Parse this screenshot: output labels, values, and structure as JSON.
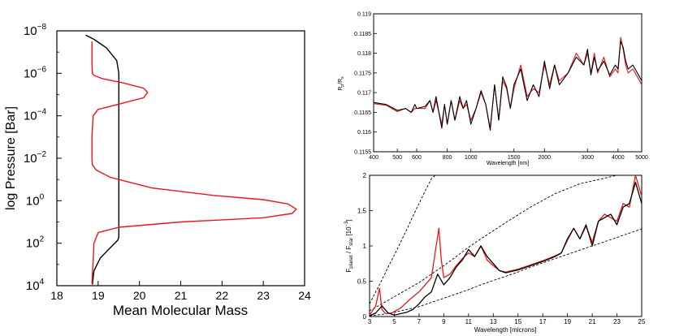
{
  "chart_data": [
    {
      "type": "line",
      "panel": "left",
      "xlabel": "Mean Molecular Mass",
      "ylabel": "log Pressure [Bar]",
      "xlim": [
        18,
        24
      ],
      "ylim_log10": [
        -8,
        4
      ],
      "y_inverted": true,
      "xticks": [
        "18",
        "19",
        "20",
        "21",
        "22",
        "23",
        "24"
      ],
      "yticks": [
        {
          "base": "10",
          "exp": "−8"
        },
        {
          "base": "10",
          "exp": "−6"
        },
        {
          "base": "10",
          "exp": "−4"
        },
        {
          "base": "10",
          "exp": "−2"
        },
        {
          "base": "10",
          "exp": "0"
        },
        {
          "base": "10",
          "exp": "2"
        },
        {
          "base": "10",
          "exp": "4"
        }
      ],
      "series": [
        {
          "name": "black",
          "color": "#000000",
          "x": [
            18.7,
            18.9,
            19.2,
            19.45,
            19.5,
            19.5,
            19.5,
            19.5,
            19.5,
            19.5,
            19.5,
            19.48,
            19.3,
            19.05,
            18.9,
            18.86
          ],
          "logp": [
            -7.8,
            -7.6,
            -7.2,
            -6.6,
            -6.0,
            -4.0,
            -2.0,
            0.0,
            1.0,
            1.5,
            1.7,
            1.85,
            2.2,
            2.7,
            3.3,
            3.95
          ]
        },
        {
          "name": "red",
          "color": "#e8151b",
          "x": [
            18.85,
            18.85,
            18.86,
            18.9,
            19.1,
            19.6,
            20.1,
            20.2,
            20.1,
            19.5,
            19.0,
            18.88,
            18.85,
            18.85,
            18.86,
            18.95,
            19.3,
            20.3,
            21.8,
            23.0,
            23.6,
            23.8,
            23.7,
            23.0,
            21.0,
            19.5,
            19.0,
            18.9,
            18.88,
            18.86,
            18.85
          ],
          "logp": [
            -7.5,
            -6.5,
            -6.0,
            -5.9,
            -5.75,
            -5.55,
            -5.3,
            -5.1,
            -4.85,
            -4.55,
            -4.3,
            -4.0,
            -3.0,
            -2.0,
            -1.7,
            -1.45,
            -1.1,
            -0.6,
            -0.25,
            -0.05,
            0.15,
            0.4,
            0.6,
            0.8,
            1.0,
            1.25,
            1.5,
            2.0,
            2.8,
            3.5,
            3.9
          ]
        }
      ]
    },
    {
      "type": "line",
      "panel": "top-right",
      "xlabel": "Wavelength [nm]",
      "ylabel_main": "R",
      "ylabel_sub1": "p",
      "ylabel_mid": "/R",
      "ylabel_sub2": "s",
      "xscale": "log",
      "xlim": [
        400,
        5000
      ],
      "ylim": [
        0.1155,
        0.119
      ],
      "xticks": [
        "400",
        "500",
        "600",
        "800",
        "1000",
        "1500",
        "2000",
        "3000",
        "4000",
        "5000"
      ],
      "yticks": [
        "0.1155",
        "0.116",
        "0.1165",
        "0.117",
        "0.1175",
        "0.118",
        "0.1185",
        "0.119"
      ],
      "series": [
        {
          "name": "black",
          "color": "#000000",
          "x": [
            400,
            450,
            500,
            540,
            570,
            590,
            600,
            620,
            650,
            680,
            700,
            720,
            760,
            780,
            800,
            830,
            860,
            900,
            930,
            960,
            1000,
            1050,
            1100,
            1150,
            1200,
            1250,
            1300,
            1350,
            1400,
            1450,
            1500,
            1600,
            1700,
            1800,
            1900,
            2000,
            2100,
            2200,
            2300,
            2500,
            2700,
            2900,
            3000,
            3100,
            3200,
            3300,
            3500,
            3700,
            3900,
            4000,
            4100,
            4200,
            4300,
            4400,
            4600,
            4800,
            5000
          ],
          "y": [
            0.11675,
            0.1167,
            0.11655,
            0.1166,
            0.1165,
            0.1167,
            0.1166,
            0.11662,
            0.11665,
            0.1168,
            0.1165,
            0.1169,
            0.1161,
            0.1167,
            0.1162,
            0.1168,
            0.1163,
            0.1169,
            0.1166,
            0.1168,
            0.1162,
            0.1166,
            0.11705,
            0.1167,
            0.11605,
            0.1172,
            0.1163,
            0.1174,
            0.11715,
            0.1166,
            0.1172,
            0.1176,
            0.1168,
            0.1172,
            0.1169,
            0.1178,
            0.1171,
            0.1177,
            0.1172,
            0.1175,
            0.1179,
            0.1177,
            0.1181,
            0.11745,
            0.1179,
            0.11755,
            0.1178,
            0.11745,
            0.1177,
            0.1176,
            0.1183,
            0.11815,
            0.1178,
            0.1176,
            0.1177,
            0.1175,
            0.1173
          ]
        },
        {
          "name": "red",
          "color": "#e8151b",
          "x": [
            400,
            450,
            500,
            540,
            570,
            590,
            600,
            620,
            650,
            680,
            700,
            720,
            760,
            780,
            800,
            830,
            860,
            900,
            930,
            960,
            1000,
            1050,
            1100,
            1150,
            1200,
            1250,
            1300,
            1350,
            1400,
            1450,
            1500,
            1600,
            1700,
            1800,
            1900,
            2000,
            2100,
            2200,
            2300,
            2500,
            2700,
            2900,
            3000,
            3100,
            3200,
            3300,
            3500,
            3700,
            3900,
            4000,
            4100,
            4200,
            4300,
            4400,
            4600,
            4800,
            5000
          ],
          "y": [
            0.11672,
            0.11668,
            0.11652,
            0.1166,
            0.1165,
            0.1166,
            0.1166,
            0.1166,
            0.1166,
            0.1168,
            0.1165,
            0.1168,
            0.1162,
            0.1167,
            0.1162,
            0.1168,
            0.1163,
            0.1168,
            0.1166,
            0.1167,
            0.1163,
            0.1166,
            0.117,
            0.1167,
            0.1161,
            0.1172,
            0.1163,
            0.1173,
            0.1171,
            0.1166,
            0.1171,
            0.1177,
            0.1169,
            0.1171,
            0.117,
            0.1177,
            0.1172,
            0.1177,
            0.1173,
            0.1175,
            0.118,
            0.1177,
            0.118,
            0.1175,
            0.118,
            0.1175,
            0.1179,
            0.1174,
            0.1176,
            0.1175,
            0.1184,
            0.1181,
            0.1177,
            0.1175,
            0.1176,
            0.1174,
            0.1172
          ]
        }
      ]
    },
    {
      "type": "line",
      "panel": "bottom-right",
      "xlabel": "Wavelength [microns]",
      "ylabel_main": "F",
      "ylabel_sub1": "planet",
      "ylabel_mid": " / F",
      "ylabel_sub2": "star",
      "ylabel_tail": " [10",
      "ylabel_sup": "−3",
      "ylabel_end": "]",
      "xlim": [
        3,
        25
      ],
      "ylim": [
        0,
        2
      ],
      "xticks": [
        "3",
        "5",
        "7",
        "9",
        "11",
        "13",
        "15",
        "17",
        "19",
        "21",
        "23",
        "25"
      ],
      "yticks": [
        "0",
        "0.5",
        "1",
        "1.5",
        "2"
      ],
      "series": [
        {
          "name": "black",
          "color": "#000000",
          "x": [
            3,
            3.5,
            4,
            4.5,
            5,
            5.5,
            6,
            6.5,
            7,
            7.5,
            8,
            8.5,
            9,
            9.5,
            10,
            10.5,
            11,
            11.5,
            12,
            12.5,
            13,
            13.5,
            14,
            15,
            16,
            17,
            18,
            18.5,
            19,
            19.5,
            20,
            20.5,
            21,
            21.5,
            22,
            22.5,
            23,
            23.5,
            24,
            24.5,
            25
          ],
          "y": [
            0.01,
            0.05,
            0.15,
            0.05,
            0.02,
            0.04,
            0.06,
            0.1,
            0.18,
            0.28,
            0.35,
            0.6,
            0.45,
            0.55,
            0.7,
            0.8,
            0.95,
            0.85,
            1.0,
            0.85,
            0.75,
            0.65,
            0.62,
            0.66,
            0.72,
            0.78,
            0.85,
            0.9,
            1.1,
            1.25,
            1.1,
            1.3,
            1.0,
            1.35,
            1.4,
            1.45,
            1.3,
            1.55,
            1.6,
            1.9,
            1.6
          ]
        },
        {
          "name": "red",
          "color": "#e8151b",
          "x": [
            3,
            3.5,
            3.8,
            4,
            4.3,
            4.8,
            5.5,
            6.3,
            7,
            7.5,
            8,
            8.3,
            8.6,
            8.8,
            9,
            9.5,
            10,
            10.5,
            11,
            11.5,
            12,
            12.5,
            13,
            13.5,
            14,
            15,
            16,
            17,
            18,
            18.5,
            19,
            19.5,
            20,
            20.5,
            21,
            21.5,
            22,
            22.5,
            23,
            23.5,
            24,
            24.5,
            25
          ],
          "y": [
            0.02,
            0.15,
            0.4,
            0.1,
            0.04,
            0.05,
            0.12,
            0.25,
            0.35,
            0.45,
            0.55,
            0.9,
            1.25,
            0.8,
            0.55,
            0.6,
            0.72,
            0.82,
            0.9,
            0.85,
            1.0,
            0.8,
            0.72,
            0.65,
            0.63,
            0.67,
            0.73,
            0.79,
            0.86,
            0.9,
            1.08,
            1.25,
            1.1,
            1.28,
            1.05,
            1.35,
            1.45,
            1.4,
            1.35,
            1.6,
            1.55,
            2.0,
            1.7
          ]
        },
        {
          "name": "dashed-1",
          "color": "#000000",
          "dashed": true,
          "x": [
            3,
            3.5,
            4,
            4.5,
            5,
            5.5,
            6,
            6.5,
            7,
            7.5,
            8,
            8.3
          ],
          "y": [
            0.18,
            0.35,
            0.52,
            0.7,
            0.87,
            1.05,
            1.23,
            1.42,
            1.6,
            1.78,
            1.95,
            2.0
          ]
        },
        {
          "name": "dashed-2",
          "color": "#000000",
          "dashed": true,
          "x": [
            3,
            4,
            5,
            6,
            7,
            8,
            9,
            10,
            11,
            12,
            14,
            16,
            18,
            20,
            22,
            23,
            24
          ],
          "y": [
            0.08,
            0.18,
            0.28,
            0.38,
            0.48,
            0.6,
            0.72,
            0.85,
            0.98,
            1.1,
            1.33,
            1.55,
            1.74,
            1.88,
            1.96,
            2.0,
            2.02
          ]
        },
        {
          "name": "dashed-3",
          "color": "#000000",
          "dashed": true,
          "x": [
            3,
            4,
            5,
            6,
            7,
            8,
            9,
            10,
            11,
            12,
            13,
            14,
            15,
            16,
            17,
            18,
            19,
            20,
            21,
            22,
            23,
            24,
            25
          ],
          "y": [
            0.01,
            0.03,
            0.06,
            0.1,
            0.14,
            0.2,
            0.26,
            0.32,
            0.38,
            0.45,
            0.51,
            0.57,
            0.63,
            0.7,
            0.76,
            0.82,
            0.88,
            0.94,
            1.0,
            1.06,
            1.12,
            1.18,
            1.24
          ]
        }
      ]
    }
  ]
}
